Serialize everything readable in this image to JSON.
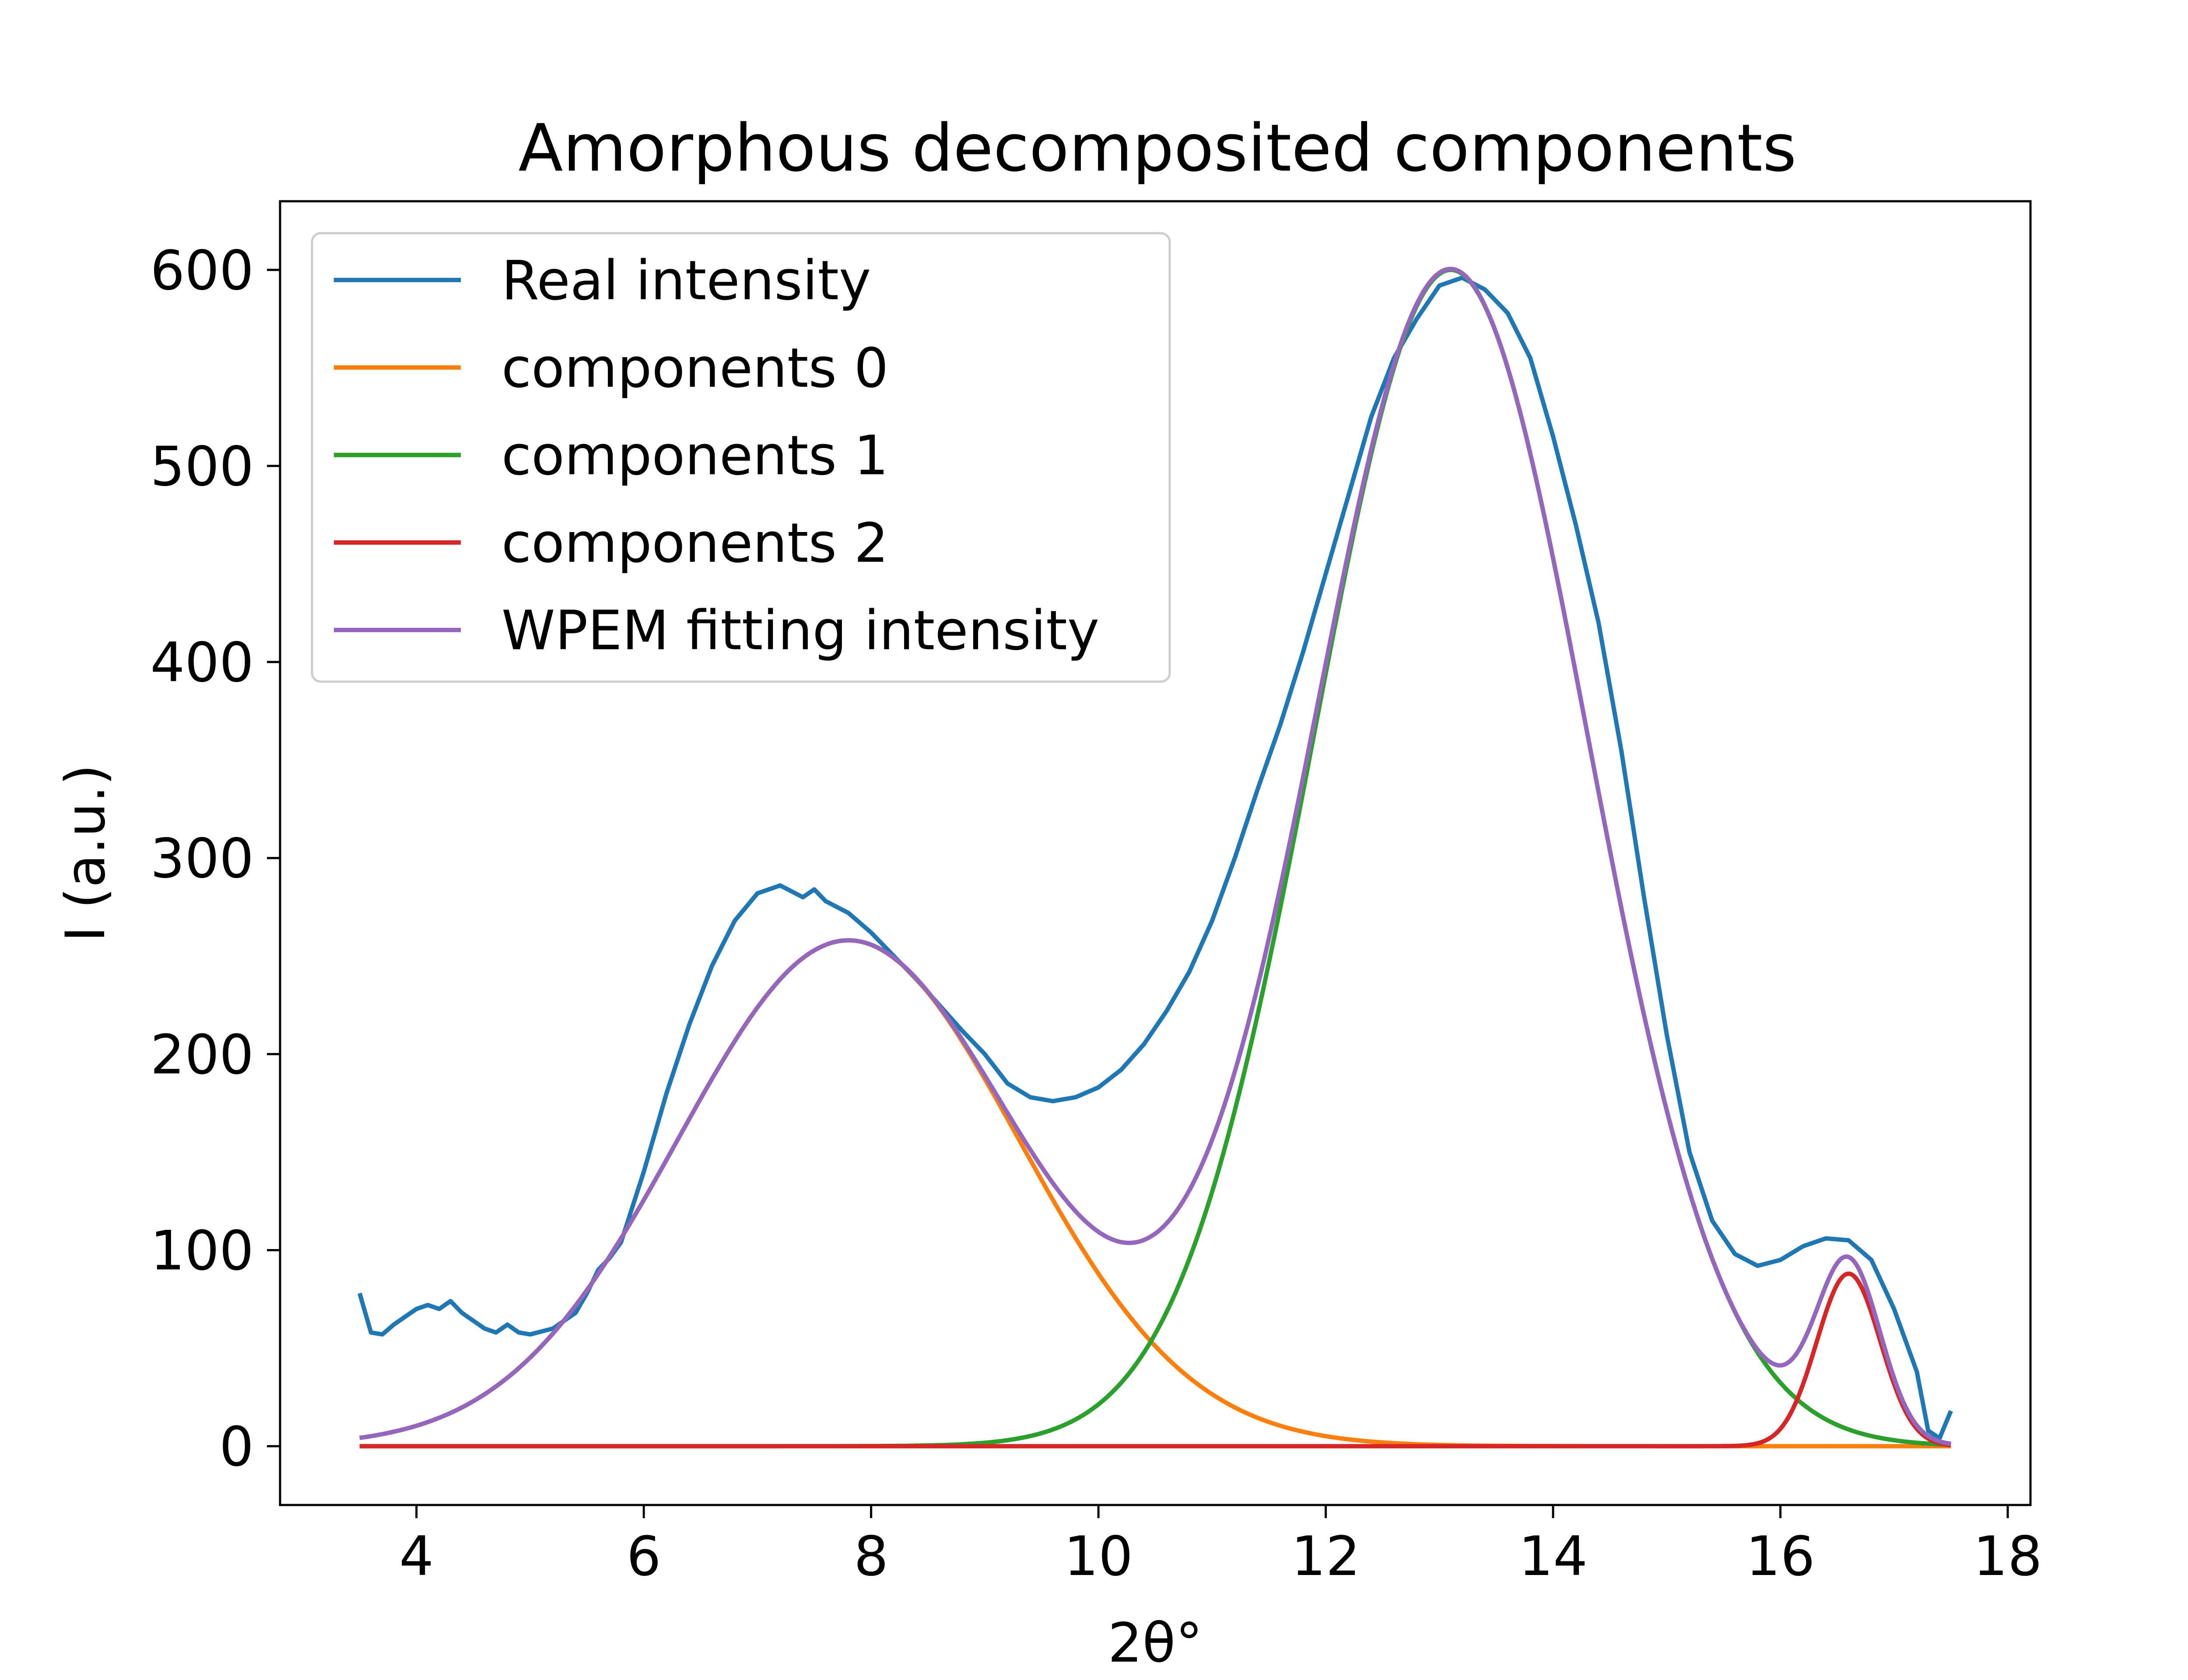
{
  "chart_data": {
    "type": "line",
    "title": "Amorphous decomposited components",
    "xlabel": "2θ°",
    "ylabel": "I (a.u.)",
    "xlim": [
      2.8,
      18.2
    ],
    "ylim": [
      -30,
      635
    ],
    "xticks": [
      4,
      6,
      8,
      10,
      12,
      14,
      16,
      18
    ],
    "yticks": [
      0,
      100,
      200,
      300,
      400,
      500,
      600
    ],
    "grid": false,
    "legend_position": "upper left",
    "series": [
      {
        "name": "Real intensity",
        "color": "#1f77b4",
        "x": [
          3.5,
          3.6,
          3.7,
          3.8,
          3.9,
          4.0,
          4.1,
          4.2,
          4.3,
          4.4,
          4.5,
          4.6,
          4.7,
          4.8,
          4.9,
          5.0,
          5.2,
          5.4,
          5.5,
          5.6,
          5.7,
          5.8,
          6.0,
          6.2,
          6.4,
          6.6,
          6.8,
          7.0,
          7.2,
          7.4,
          7.5,
          7.6,
          7.8,
          8.0,
          8.2,
          8.4,
          8.6,
          8.8,
          9.0,
          9.2,
          9.4,
          9.6,
          9.8,
          10.0,
          10.2,
          10.4,
          10.6,
          10.8,
          11.0,
          11.2,
          11.4,
          11.6,
          11.8,
          12.0,
          12.2,
          12.4,
          12.6,
          12.8,
          13.0,
          13.2,
          13.4,
          13.6,
          13.8,
          14.0,
          14.2,
          14.4,
          14.6,
          14.8,
          15.0,
          15.2,
          15.4,
          15.6,
          15.8,
          16.0,
          16.2,
          16.4,
          16.6,
          16.8,
          17.0,
          17.2,
          17.3,
          17.4,
          17.5
        ],
        "values": [
          78,
          58,
          57,
          62,
          66,
          70,
          72,
          70,
          74,
          68,
          64,
          60,
          58,
          62,
          58,
          57,
          60,
          68,
          78,
          90,
          96,
          104,
          140,
          180,
          215,
          245,
          268,
          282,
          286,
          280,
          284,
          278,
          272,
          262,
          250,
          238,
          225,
          212,
          200,
          185,
          178,
          176,
          178,
          183,
          192,
          205,
          222,
          242,
          268,
          300,
          335,
          368,
          405,
          445,
          485,
          525,
          555,
          575,
          592,
          596,
          590,
          578,
          555,
          515,
          470,
          420,
          355,
          280,
          210,
          150,
          115,
          98,
          92,
          95,
          102,
          106,
          105,
          95,
          70,
          38,
          8,
          4,
          18
        ]
      },
      {
        "name": "components 0",
        "color": "#ff7f0e",
        "gaussian": {
          "center": 7.8,
          "sigma": 1.5,
          "amplitude": 258
        },
        "x_range": [
          3.5,
          17.5
        ]
      },
      {
        "name": "components 1",
        "color": "#2ca02c",
        "gaussian": {
          "center": 13.1,
          "sigma": 1.2,
          "amplitude": 600
        },
        "x_range": [
          3.5,
          17.5
        ]
      },
      {
        "name": "components 2",
        "color": "#d62728",
        "gaussian": {
          "center": 16.6,
          "sigma": 0.28,
          "amplitude": 88
        },
        "x_range": [
          3.5,
          17.5
        ]
      },
      {
        "name": "WPEM fitting intensity",
        "color": "#9467bd",
        "sum_of": [
          "components 0",
          "components 1",
          "components 2"
        ],
        "x_range": [
          3.5,
          17.5
        ]
      }
    ]
  }
}
